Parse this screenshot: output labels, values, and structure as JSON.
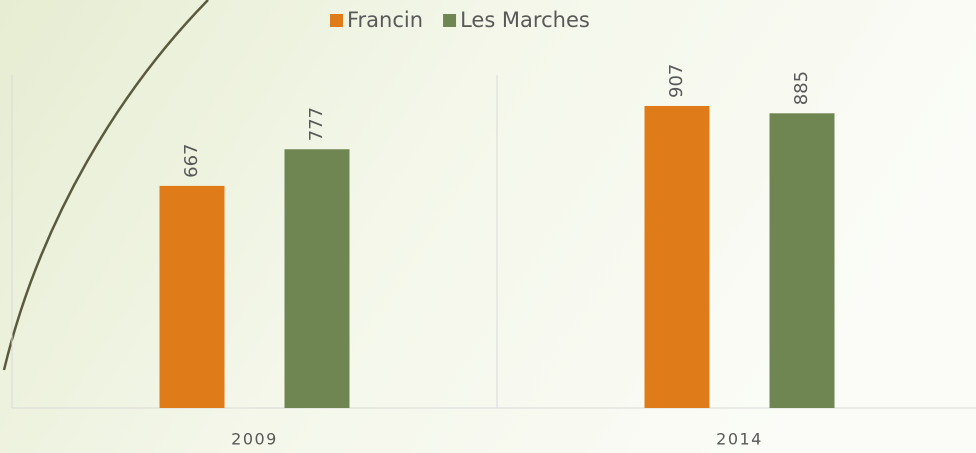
{
  "chart_data": {
    "type": "bar",
    "categories": [
      "2009",
      "2014"
    ],
    "series": [
      {
        "name": "Francin",
        "color": "#e07b1a",
        "values": [
          667,
          907
        ]
      },
      {
        "name": "Les Marches",
        "color": "#6f8652",
        "values": [
          777,
          885
        ]
      }
    ],
    "ylim": [
      0,
      1000
    ]
  }
}
